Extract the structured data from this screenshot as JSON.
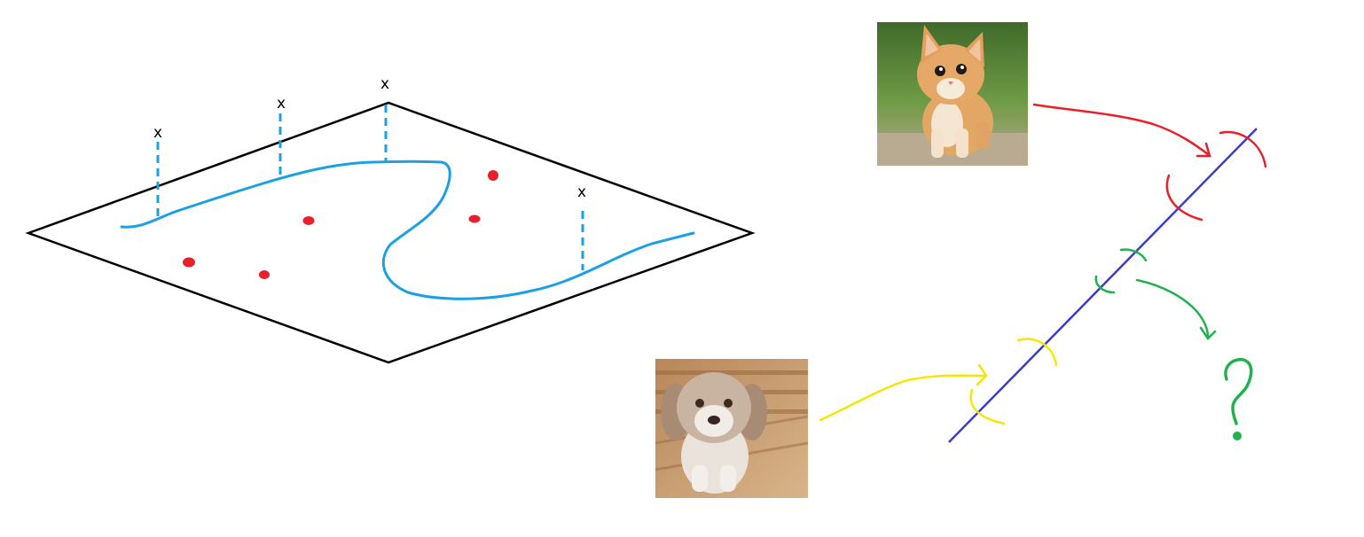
{
  "manifold_markers": [
    {
      "label": "x"
    },
    {
      "label": "x"
    },
    {
      "label": "x"
    },
    {
      "label": "x"
    }
  ],
  "images": [
    {
      "subject": "kitten",
      "icon": "cat-photo"
    },
    {
      "subject": "puppy",
      "icon": "dog-photo"
    }
  ],
  "annotation_symbol": "?",
  "colors": {
    "plane_outline": "#000000",
    "manifold_curve": "#1ba1e2",
    "data_points": "#e8202a",
    "projection_line": "#3c3cc8",
    "cat_arrow": "#e8202a",
    "dog_arrow": "#f5e60a",
    "unknown_arrow": "#22b14c"
  }
}
